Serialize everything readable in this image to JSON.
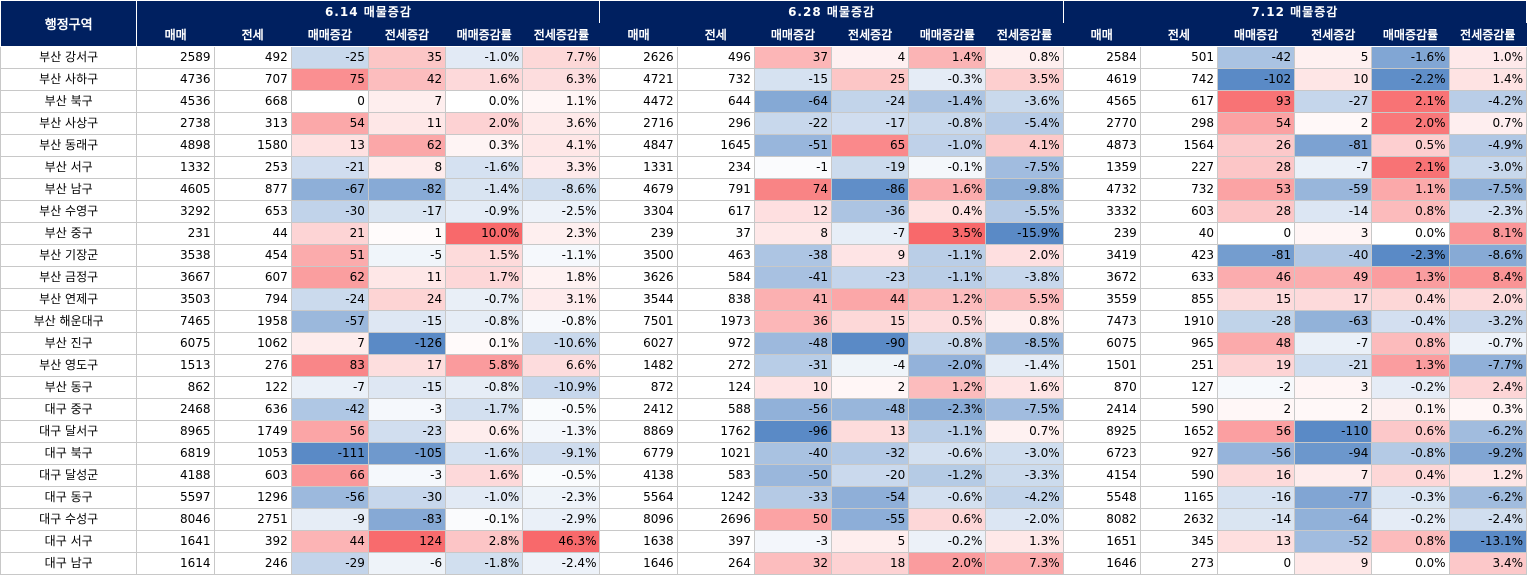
{
  "header": {
    "region_label": "행정구역",
    "groups": [
      "6.14 매물증감",
      "6.28 매물증감",
      "7.12 매물증감"
    ],
    "subheaders": [
      "매매",
      "전세",
      "매매증감",
      "전세증감",
      "매매증감률",
      "전세증감률"
    ]
  },
  "colors": {
    "header_bg": "#002060",
    "positive": "#f8696b",
    "negative": "#5a8ac6",
    "neutral": "#ffffff"
  },
  "rows": [
    {
      "region": "부산 강서구",
      "p": [
        [
          "2589",
          "492",
          "-25",
          "35",
          "-1.0%",
          "7.7%"
        ],
        [
          "2626",
          "496",
          "37",
          "4",
          "1.4%",
          "0.8%"
        ],
        [
          "2584",
          "501",
          "-42",
          "5",
          "-1.6%",
          "1.0%"
        ]
      ]
    },
    {
      "region": "부산 사하구",
      "p": [
        [
          "4736",
          "707",
          "75",
          "42",
          "1.6%",
          "6.3%"
        ],
        [
          "4721",
          "732",
          "-15",
          "25",
          "-0.3%",
          "3.5%"
        ],
        [
          "4619",
          "742",
          "-102",
          "10",
          "-2.2%",
          "1.4%"
        ]
      ]
    },
    {
      "region": "부산 북구",
      "p": [
        [
          "4536",
          "668",
          "0",
          "7",
          "0.0%",
          "1.1%"
        ],
        [
          "4472",
          "644",
          "-64",
          "-24",
          "-1.4%",
          "-3.6%"
        ],
        [
          "4565",
          "617",
          "93",
          "-27",
          "2.1%",
          "-4.2%"
        ]
      ]
    },
    {
      "region": "부산 사상구",
      "p": [
        [
          "2738",
          "313",
          "54",
          "11",
          "2.0%",
          "3.6%"
        ],
        [
          "2716",
          "296",
          "-22",
          "-17",
          "-0.8%",
          "-5.4%"
        ],
        [
          "2770",
          "298",
          "54",
          "2",
          "2.0%",
          "0.7%"
        ]
      ]
    },
    {
      "region": "부산 동래구",
      "p": [
        [
          "4898",
          "1580",
          "13",
          "62",
          "0.3%",
          "4.1%"
        ],
        [
          "4847",
          "1645",
          "-51",
          "65",
          "-1.0%",
          "4.1%"
        ],
        [
          "4873",
          "1564",
          "26",
          "-81",
          "0.5%",
          "-4.9%"
        ]
      ]
    },
    {
      "region": "부산 서구",
      "p": [
        [
          "1332",
          "253",
          "-21",
          "8",
          "-1.6%",
          "3.3%"
        ],
        [
          "1331",
          "234",
          "-1",
          "-19",
          "-0.1%",
          "-7.5%"
        ],
        [
          "1359",
          "227",
          "28",
          "-7",
          "2.1%",
          "-3.0%"
        ]
      ]
    },
    {
      "region": "부산 남구",
      "p": [
        [
          "4605",
          "877",
          "-67",
          "-82",
          "-1.4%",
          "-8.6%"
        ],
        [
          "4679",
          "791",
          "74",
          "-86",
          "1.6%",
          "-9.8%"
        ],
        [
          "4732",
          "732",
          "53",
          "-59",
          "1.1%",
          "-7.5%"
        ]
      ]
    },
    {
      "region": "부산 수영구",
      "p": [
        [
          "3292",
          "653",
          "-30",
          "-17",
          "-0.9%",
          "-2.5%"
        ],
        [
          "3304",
          "617",
          "12",
          "-36",
          "0.4%",
          "-5.5%"
        ],
        [
          "3332",
          "603",
          "28",
          "-14",
          "0.8%",
          "-2.3%"
        ]
      ]
    },
    {
      "region": "부산 중구",
      "p": [
        [
          "231",
          "44",
          "21",
          "1",
          "10.0%",
          "2.3%"
        ],
        [
          "239",
          "37",
          "8",
          "-7",
          "3.5%",
          "-15.9%"
        ],
        [
          "239",
          "40",
          "0",
          "3",
          "0.0%",
          "8.1%"
        ]
      ]
    },
    {
      "region": "부산 기장군",
      "p": [
        [
          "3538",
          "454",
          "51",
          "-5",
          "1.5%",
          "-1.1%"
        ],
        [
          "3500",
          "463",
          "-38",
          "9",
          "-1.1%",
          "2.0%"
        ],
        [
          "3419",
          "423",
          "-81",
          "-40",
          "-2.3%",
          "-8.6%"
        ]
      ]
    },
    {
      "region": "부산 금정구",
      "p": [
        [
          "3667",
          "607",
          "62",
          "11",
          "1.7%",
          "1.8%"
        ],
        [
          "3626",
          "584",
          "-41",
          "-23",
          "-1.1%",
          "-3.8%"
        ],
        [
          "3672",
          "633",
          "46",
          "49",
          "1.3%",
          "8.4%"
        ]
      ]
    },
    {
      "region": "부산 연제구",
      "p": [
        [
          "3503",
          "794",
          "-24",
          "24",
          "-0.7%",
          "3.1%"
        ],
        [
          "3544",
          "838",
          "41",
          "44",
          "1.2%",
          "5.5%"
        ],
        [
          "3559",
          "855",
          "15",
          "17",
          "0.4%",
          "2.0%"
        ]
      ]
    },
    {
      "region": "부산 해운대구",
      "p": [
        [
          "7465",
          "1958",
          "-57",
          "-15",
          "-0.8%",
          "-0.8%"
        ],
        [
          "7501",
          "1973",
          "36",
          "15",
          "0.5%",
          "0.8%"
        ],
        [
          "7473",
          "1910",
          "-28",
          "-63",
          "-0.4%",
          "-3.2%"
        ]
      ]
    },
    {
      "region": "부산 진구",
      "p": [
        [
          "6075",
          "1062",
          "7",
          "-126",
          "0.1%",
          "-10.6%"
        ],
        [
          "6027",
          "972",
          "-48",
          "-90",
          "-0.8%",
          "-8.5%"
        ],
        [
          "6075",
          "965",
          "48",
          "-7",
          "0.8%",
          "-0.7%"
        ]
      ]
    },
    {
      "region": "부산 영도구",
      "p": [
        [
          "1513",
          "276",
          "83",
          "17",
          "5.8%",
          "6.6%"
        ],
        [
          "1482",
          "272",
          "-31",
          "-4",
          "-2.0%",
          "-1.4%"
        ],
        [
          "1501",
          "251",
          "19",
          "-21",
          "1.3%",
          "-7.7%"
        ]
      ]
    },
    {
      "region": "부산 동구",
      "p": [
        [
          "862",
          "122",
          "-7",
          "-15",
          "-0.8%",
          "-10.9%"
        ],
        [
          "872",
          "124",
          "10",
          "2",
          "1.2%",
          "1.6%"
        ],
        [
          "870",
          "127",
          "-2",
          "3",
          "-0.2%",
          "2.4%"
        ]
      ]
    },
    {
      "region": "대구 중구",
      "p": [
        [
          "2468",
          "636",
          "-42",
          "-3",
          "-1.7%",
          "-0.5%"
        ],
        [
          "2412",
          "588",
          "-56",
          "-48",
          "-2.3%",
          "-7.5%"
        ],
        [
          "2414",
          "590",
          "2",
          "2",
          "0.1%",
          "0.3%"
        ]
      ]
    },
    {
      "region": "대구 달서구",
      "p": [
        [
          "8965",
          "1749",
          "56",
          "-23",
          "0.6%",
          "-1.3%"
        ],
        [
          "8869",
          "1762",
          "-96",
          "13",
          "-1.1%",
          "0.7%"
        ],
        [
          "8925",
          "1652",
          "56",
          "-110",
          "0.6%",
          "-6.2%"
        ]
      ]
    },
    {
      "region": "대구 북구",
      "p": [
        [
          "6819",
          "1053",
          "-111",
          "-105",
          "-1.6%",
          "-9.1%"
        ],
        [
          "6779",
          "1021",
          "-40",
          "-32",
          "-0.6%",
          "-3.0%"
        ],
        [
          "6723",
          "927",
          "-56",
          "-94",
          "-0.8%",
          "-9.2%"
        ]
      ]
    },
    {
      "region": "대구 달성군",
      "p": [
        [
          "4188",
          "603",
          "66",
          "-3",
          "1.6%",
          "-0.5%"
        ],
        [
          "4138",
          "583",
          "-50",
          "-20",
          "-1.2%",
          "-3.3%"
        ],
        [
          "4154",
          "590",
          "16",
          "7",
          "0.4%",
          "1.2%"
        ]
      ]
    },
    {
      "region": "대구 동구",
      "p": [
        [
          "5597",
          "1296",
          "-56",
          "-30",
          "-1.0%",
          "-2.3%"
        ],
        [
          "5564",
          "1242",
          "-33",
          "-54",
          "-0.6%",
          "-4.2%"
        ],
        [
          "5548",
          "1165",
          "-16",
          "-77",
          "-0.3%",
          "-6.2%"
        ]
      ]
    },
    {
      "region": "대구 수성구",
      "p": [
        [
          "8046",
          "2751",
          "-9",
          "-83",
          "-0.1%",
          "-2.9%"
        ],
        [
          "8096",
          "2696",
          "50",
          "-55",
          "0.6%",
          "-2.0%"
        ],
        [
          "8082",
          "2632",
          "-14",
          "-64",
          "-0.2%",
          "-2.4%"
        ]
      ]
    },
    {
      "region": "대구 서구",
      "p": [
        [
          "1641",
          "392",
          "44",
          "124",
          "2.8%",
          "46.3%"
        ],
        [
          "1638",
          "397",
          "-3",
          "5",
          "-0.2%",
          "1.3%"
        ],
        [
          "1651",
          "345",
          "13",
          "-52",
          "0.8%",
          "-13.1%"
        ]
      ]
    },
    {
      "region": "대구 남구",
      "p": [
        [
          "1614",
          "246",
          "-29",
          "-6",
          "-1.8%",
          "-2.4%"
        ],
        [
          "1646",
          "264",
          "32",
          "18",
          "2.0%",
          "7.3%"
        ],
        [
          "1646",
          "273",
          "0",
          "9",
          "0.0%",
          "3.4%"
        ]
      ]
    }
  ]
}
